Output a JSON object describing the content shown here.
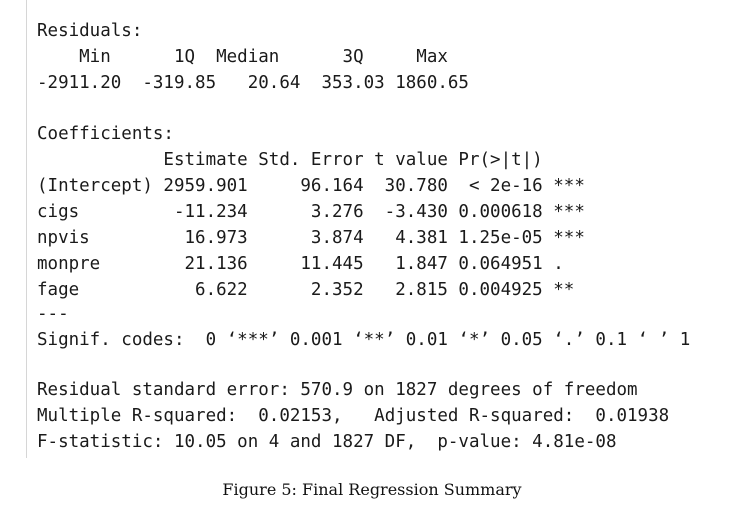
{
  "residuals": {
    "title": "Residuals:",
    "header": "    Min      1Q  Median      3Q     Max",
    "values": "-2911.20  -319.85   20.64  353.03 1860.65"
  },
  "coefficients": {
    "title": "Coefficients:",
    "header": "            Estimate Std. Error t value Pr(>|t|)    ",
    "rows": [
      "(Intercept) 2959.901     96.164  30.780  < 2e-16 ***",
      "cigs         -11.234      3.276  -3.430 0.000618 ***",
      "npvis         16.973      3.874   4.381 1.25e-05 ***",
      "monpre        21.136     11.445   1.847 0.064951 .  ",
      "fage           6.622      2.352   2.815 0.004925 ** "
    ],
    "separator": "---",
    "signif": "Signif. codes:  0 ‘***’ 0.001 ‘**’ 0.01 ‘*’ 0.05 ‘.’ 0.1 ‘ ’ 1"
  },
  "summary": {
    "rse": "Residual standard error: 570.9 on 1827 degrees of freedom",
    "r2": "Multiple R-squared:  0.02153,\tAdjusted R-squared:  0.01938 ",
    "fstat": "F-statistic: 10.05 on 4 and 1827 DF,  p-value: 4.81e-08"
  },
  "caption": "Figure 5: Final Regression Summary"
}
